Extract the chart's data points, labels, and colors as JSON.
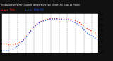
{
  "title": "Milwaukee Weather  Outdoor Temperature (vs)  Wind Chill (Last 24 Hours)",
  "bg_color": "#111111",
  "plot_bg_color": "#ffffff",
  "grid_color": "#888888",
  "temp_color": "#ff2200",
  "wind_color": "#2255ff",
  "ylim": [
    -10,
    60
  ],
  "ytick_vals": [
    -10,
    0,
    10,
    20,
    30,
    40,
    50,
    60
  ],
  "ytick_labels": [
    "-10",
    "0",
    "10",
    "20",
    "30",
    "40",
    "50",
    "60"
  ],
  "num_points": 48,
  "temp_values": [
    5,
    5,
    5,
    4,
    4,
    4,
    4,
    5,
    6,
    8,
    10,
    14,
    18,
    23,
    28,
    33,
    37,
    40,
    43,
    45,
    47,
    48,
    49,
    50,
    51,
    51,
    51,
    51,
    50,
    50,
    50,
    50,
    50,
    50,
    49,
    48,
    47,
    45,
    43,
    40,
    37,
    34,
    32,
    30,
    28,
    26,
    24,
    22
  ],
  "wind_values": [
    -7,
    -7,
    -7,
    -7,
    -6,
    -5,
    -4,
    -1,
    2,
    5,
    9,
    13,
    17,
    22,
    27,
    32,
    36,
    39,
    42,
    44,
    46,
    47,
    48,
    49,
    50,
    50,
    50,
    50,
    49,
    49,
    49,
    49,
    49,
    49,
    47,
    45,
    43,
    41,
    38,
    35,
    31,
    27,
    24,
    21,
    19,
    17,
    15,
    13
  ],
  "xtick_positions": [
    0,
    4,
    8,
    12,
    16,
    20,
    24,
    28,
    32,
    36,
    40,
    44,
    47
  ],
  "title_fontsize": 2.5,
  "legend_labels": [
    "Temp",
    "Wind Chill"
  ]
}
